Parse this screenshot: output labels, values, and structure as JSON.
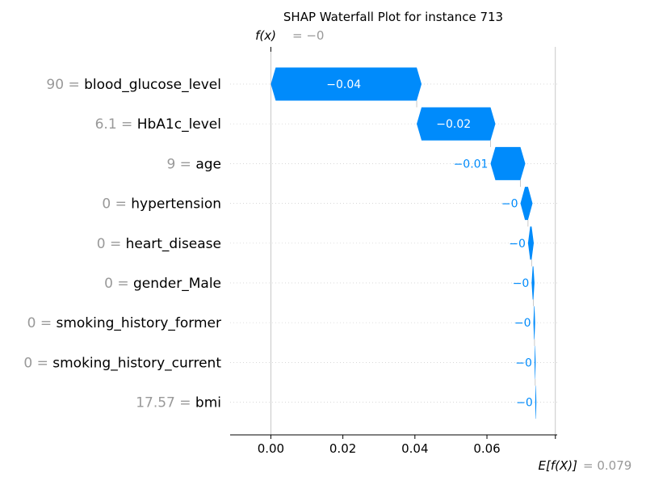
{
  "chart_data": {
    "type": "waterfall",
    "title": "SHAP Waterfall Plot for instance 713",
    "fx_label": "f(x)",
    "fx_value": "= −0",
    "base_label": "E[f(X)]",
    "base_value_text": "= 0.079",
    "base_value": 0.079,
    "final_value": 0,
    "xlim": [
      -0.0113,
      0.0795
    ],
    "xticks": [
      0.0,
      0.02,
      0.04,
      0.06
    ],
    "tick_labels": [
      "0.00",
      "0.02",
      "0.04",
      "0.06"
    ],
    "grid": true,
    "negative_color": "#008bfb",
    "positive_color": "#ff0051",
    "features": [
      {
        "value": "90",
        "name": "blood_glucose_level",
        "shap": -0.0405,
        "label": "−0.04"
      },
      {
        "value": "6.1",
        "name": "HbA1c_level",
        "shap": -0.0205,
        "label": "−0.02"
      },
      {
        "value": "9",
        "name": "age",
        "shap": -0.0083,
        "label": "−0.01"
      },
      {
        "value": "0",
        "name": "hypertension",
        "shap": -0.0021,
        "label": "−0"
      },
      {
        "value": "0",
        "name": "heart_disease",
        "shap": -0.001,
        "label": "−0"
      },
      {
        "value": "0",
        "name": "gender_Male",
        "shap": -0.0005,
        "label": "−0"
      },
      {
        "value": "0",
        "name": "smoking_history_former",
        "shap": -0.0003,
        "label": "−0"
      },
      {
        "value": "0",
        "name": "smoking_history_current",
        "shap": -0.0002,
        "label": "−0"
      },
      {
        "value": "17.57",
        "name": "bmi",
        "shap": -0.0002,
        "label": "−0"
      }
    ]
  }
}
